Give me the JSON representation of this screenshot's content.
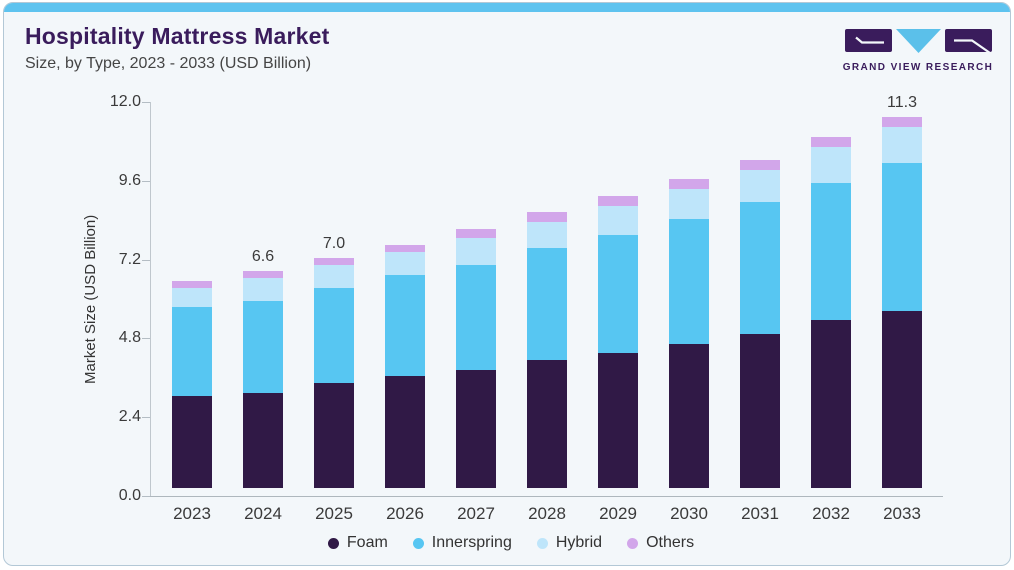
{
  "header": {
    "title": "Hospitality Mattress Market",
    "subtitle": "Size, by Type, 2023 - 2033 (USD Billion)"
  },
  "logo": {
    "text": "GRAND VIEW RESEARCH",
    "brand_purple": "#3a1c5c",
    "brand_blue": "#5bc0ea"
  },
  "chart_data": {
    "type": "bar",
    "stacked": true,
    "title": "Hospitality Mattress Market Size, by Type, 2023 - 2033 (USD Billion)",
    "categories": [
      "2023",
      "2024",
      "2025",
      "2026",
      "2027",
      "2028",
      "2029",
      "2030",
      "2031",
      "2032",
      "2033"
    ],
    "series": [
      {
        "name": "Foam",
        "color": "#301946",
        "values": [
          2.8,
          2.9,
          3.2,
          3.4,
          3.6,
          3.9,
          4.1,
          4.4,
          4.7,
          5.1,
          5.4
        ]
      },
      {
        "name": "Innerspring",
        "color": "#57c6f2",
        "values": [
          2.7,
          2.8,
          2.9,
          3.1,
          3.2,
          3.4,
          3.6,
          3.8,
          4.0,
          4.2,
          4.5
        ]
      },
      {
        "name": "Hybrid",
        "color": "#bee5fa",
        "values": [
          0.6,
          0.7,
          0.7,
          0.7,
          0.8,
          0.8,
          0.9,
          0.9,
          1.0,
          1.1,
          1.1
        ]
      },
      {
        "name": "Others",
        "color": "#d2a6ea",
        "values": [
          0.2,
          0.2,
          0.2,
          0.2,
          0.3,
          0.3,
          0.3,
          0.3,
          0.3,
          0.3,
          0.3
        ]
      }
    ],
    "totals": [
      6.3,
      6.6,
      7.0,
      7.4,
      7.9,
      8.4,
      8.9,
      9.4,
      10.0,
      10.7,
      11.3
    ],
    "bar_labels": {
      "2024": "6.6",
      "2025": "7.0",
      "2033": "11.3"
    },
    "xlabel": "",
    "ylabel": "Market Size (USD Billion)",
    "yticks": [
      0.0,
      2.4,
      4.8,
      7.2,
      9.6,
      12.0
    ],
    "ylim": [
      0,
      12
    ],
    "grid": false,
    "legend_position": "bottom"
  }
}
